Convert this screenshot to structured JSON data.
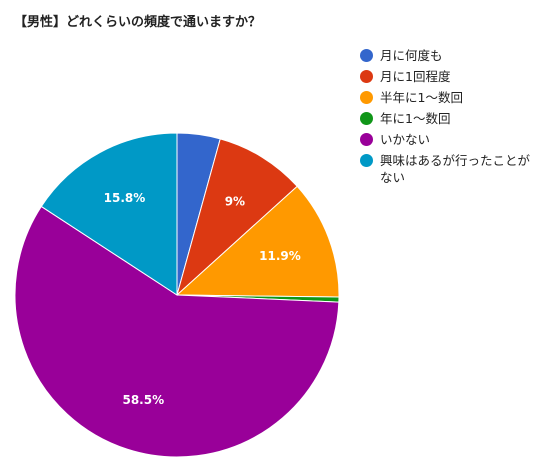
{
  "chart_data": {
    "type": "pie",
    "title": "【男性】どれくらいの頻度で通いますか？",
    "series": [
      {
        "name": "月に何度も",
        "value": 4.3,
        "label": "",
        "color": "#3366cc"
      },
      {
        "name": "月に1回程度",
        "value": 9,
        "label": "9%",
        "color": "#dc3912"
      },
      {
        "name": "半年に1〜数回",
        "value": 11.9,
        "label": "11.9%",
        "color": "#ff9900"
      },
      {
        "name": "年に1〜数回",
        "value": 0.5,
        "label": "",
        "color": "#109618"
      },
      {
        "name": "いかない",
        "value": 58.5,
        "label": "58.5%",
        "color": "#990099"
      },
      {
        "name": "興味はあるが行ったことがない",
        "value": 15.8,
        "label": "15.8%",
        "color": "#0099c6"
      }
    ],
    "legend_position": "right"
  }
}
